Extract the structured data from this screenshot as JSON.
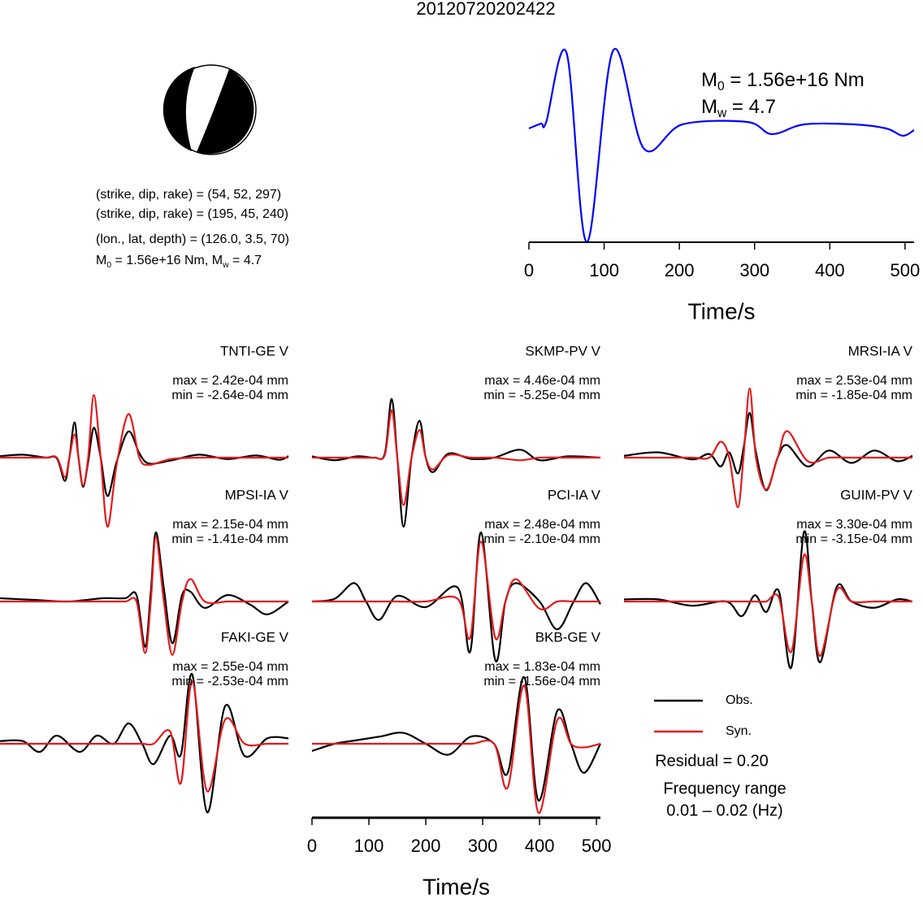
{
  "chart_data": [
    {
      "type": "mechanism",
      "title": "20120720202422",
      "lines": [
        "(strike, dip, rake) = (54, 52, 297)",
        "(strike, dip, rake) = (195, 45, 240)",
        "(lon., lat, depth) = (126.0, 3.5, 70)"
      ],
      "moment_line": [
        "M",
        "0",
        " = 1.56e+16 Nm, M",
        "w",
        " = 4.7"
      ]
    },
    {
      "type": "line",
      "x": [
        0,
        16,
        23,
        50,
        77,
        112,
        153,
        204,
        290,
        323,
        366,
        432,
        475,
        497,
        512
      ],
      "series": [
        {
          "color": "#0000ff",
          "values": [
            0,
            0.06,
            0.08,
            0.93,
            -1.4,
            0.96,
            -0.25,
            0.05,
            0.08,
            -0.07,
            0.05,
            0.05,
            0,
            -0.09,
            -0.02
          ]
        }
      ],
      "xlim": [
        0,
        512
      ],
      "xticks": [
        0,
        100,
        200,
        300,
        400,
        500
      ],
      "xlabel": "Time/s",
      "annotations": [
        [
          "M",
          "0",
          " = 1.56e+16 Nm"
        ],
        [
          "M",
          "w",
          " = 4.7"
        ]
      ]
    },
    {
      "type": "waveform",
      "title": "TNTI-GE V",
      "max_label": "max = 2.42e-04 mm",
      "min_label": "min = -2.64e-04 mm",
      "x": [
        0,
        40,
        80,
        100,
        114,
        122,
        131,
        138,
        146,
        155,
        165,
        177,
        189,
        205,
        226,
        245,
        262,
        300,
        350,
        400,
        450,
        490,
        507
      ],
      "series": [
        {
          "color": "#000000",
          "values": [
            1e-05,
            2e-05,
            0,
            -5e-06,
            -0.00016,
            0,
            0.000242,
            0,
            -0.0002,
            -3e-05,
            0.000205,
            0,
            -0.000264,
            -3e-05,
            0.00018,
            3e-05,
            -4e-05,
            -2e-05,
            2e-05,
            -1e-05,
            1.5e-05,
            -1.5e-05,
            1e-05
          ]
        },
        {
          "color": "#e31a1c",
          "values": [
            0,
            0,
            0,
            0,
            -0.000135,
            0,
            0.00016,
            0,
            -0.00019,
            0,
            0.00043,
            0,
            -0.000475,
            -5e-05,
            0.0003,
            0,
            -5e-05,
            -1e-05,
            0,
            0,
            0,
            0,
            0
          ]
        }
      ]
    },
    {
      "type": "waveform",
      "title": "SKMP-PV V",
      "max_label": "max = 4.46e-04 mm",
      "min_label": "min = -5.25e-04 mm",
      "x": [
        0,
        40,
        80,
        110,
        128,
        140,
        150,
        161,
        175,
        189,
        200,
        213,
        240,
        280,
        320,
        366,
        400,
        450,
        507
      ],
      "series": [
        {
          "color": "#000000",
          "values": [
            1e-05,
            -2e-05,
            1e-05,
            0,
            3e-05,
            0.000446,
            0,
            -0.000525,
            0,
            0.00028,
            0,
            -0.00011,
            3e-05,
            -1e-05,
            0,
            6e-05,
            -2e-05,
            1e-05,
            0
          ]
        },
        {
          "color": "#e31a1c",
          "values": [
            0,
            0,
            0,
            0,
            2e-05,
            0.00036,
            0,
            -0.00036,
            0,
            0.00021,
            0,
            -9e-05,
            2e-05,
            0,
            0,
            -2e-05,
            0,
            0,
            0
          ]
        }
      ]
    },
    {
      "type": "waveform",
      "title": "MRSI-IA V",
      "max_label": "max = 2.53e-04 mm",
      "min_label": "min = -1.85e-04 mm",
      "x": [
        0,
        60,
        120,
        150,
        170,
        185,
        200,
        210,
        221,
        232,
        250,
        270,
        287,
        323,
        360,
        400,
        440,
        480,
        507
      ],
      "series": [
        {
          "color": "#000000",
          "values": [
            1e-05,
            3e-05,
            -1e-05,
            2e-05,
            -5e-05,
            3e-05,
            -9e-05,
            5e-05,
            0.000253,
            3e-05,
            -0.000185,
            0,
            7e-05,
            -5e-05,
            4e-05,
            -3e-05,
            4e-05,
            -2e-05,
            1e-05
          ]
        },
        {
          "color": "#e31a1c",
          "values": [
            0,
            0,
            0,
            0,
            9e-05,
            0,
            -0.00028,
            0,
            0.00039,
            0,
            -0.00018,
            0,
            0.00015,
            -2e-05,
            0,
            0,
            0,
            0,
            0
          ]
        }
      ]
    },
    {
      "type": "waveform",
      "title": "MPSI-IA V",
      "max_label": "max = 2.15e-04 mm",
      "min_label": "min = -1.41e-04 mm",
      "x": [
        0,
        60,
        120,
        180,
        220,
        240,
        255,
        265,
        274,
        288,
        303,
        320,
        335,
        360,
        400,
        440,
        470,
        507
      ],
      "series": [
        {
          "color": "#000000",
          "values": [
            1e-05,
            5e-06,
            0,
            1e-05,
            1e-05,
            2e-05,
            -0.000141,
            3e-05,
            0.000215,
            4e-05,
            -0.00013,
            2e-05,
            3e-05,
            -2e-05,
            2e-05,
            -1e-05,
            -4e-05,
            0
          ]
        },
        {
          "color": "#e31a1c",
          "values": [
            0,
            0,
            0,
            0,
            0,
            0,
            -0.00016,
            0,
            0.0002,
            0,
            -0.000166,
            0,
            7e-05,
            0,
            0,
            0,
            0,
            0
          ]
        }
      ]
    },
    {
      "type": "waveform",
      "title": "PCI-IA V",
      "max_label": "max = 2.48e-04 mm",
      "min_label": "min = -2.10e-04 mm",
      "x": [
        0,
        40,
        74,
        95,
        118,
        150,
        200,
        256,
        278,
        297,
        322,
        340,
        359,
        400,
        431,
        460,
        482,
        507
      ],
      "series": [
        {
          "color": "#000000",
          "values": [
            0,
            1e-05,
            6.6e-05,
            0,
            -6.6e-05,
            2e-05,
            -2e-05,
            5e-05,
            -0.00018,
            0.000248,
            -0.00021,
            0,
            6.6e-05,
            0,
            -0.0001,
            0,
            6.6e-05,
            -1e-05
          ]
        },
        {
          "color": "#e31a1c",
          "values": [
            0,
            0,
            0,
            0,
            0,
            0,
            0,
            1e-05,
            -0.00013,
            0.000215,
            -0.00013,
            0,
            8e-05,
            -2.6e-05,
            0,
            0,
            0,
            0
          ]
        }
      ]
    },
    {
      "type": "waveform",
      "title": "GUIM-PV V",
      "max_label": "max = 3.30e-04 mm",
      "min_label": "min = -3.15e-04 mm",
      "x": [
        0,
        60,
        120,
        180,
        207,
        230,
        250,
        272,
        294,
        316,
        330,
        345,
        374,
        400,
        440,
        480,
        507
      ],
      "series": [
        {
          "color": "#000000",
          "values": [
            1e-05,
            1e-05,
            -2e-05,
            0,
            -7e-05,
            3e-05,
            -5e-05,
            5e-05,
            -0.000315,
            0.00033,
            0,
            -0.00029,
            7e-05,
            0,
            -3e-05,
            1e-05,
            0
          ]
        },
        {
          "color": "#e31a1c",
          "values": [
            0,
            0,
            0,
            0,
            0,
            0,
            0,
            2e-05,
            -0.00024,
            0.00022,
            0,
            -0.00026,
            5.5e-05,
            0,
            0,
            0,
            0
          ]
        }
      ]
    },
    {
      "type": "waveform",
      "title": "FAKI-GE V",
      "max_label": "max = 2.55e-04 mm",
      "min_label": "min = -2.53e-04 mm",
      "x": [
        0,
        40,
        70,
        100,
        140,
        170,
        200,
        226,
        250,
        270,
        299,
        318,
        338,
        364,
        396,
        430,
        470,
        507
      ],
      "series": [
        {
          "color": "#000000",
          "values": [
            1e-05,
            1e-05,
            -3e-05,
            3e-05,
            -3e-05,
            3e-05,
            0,
            7.5e-05,
            0,
            -7.5e-05,
            3e-05,
            -4e-05,
            0.000255,
            -0.000253,
            0.00014,
            -4.5e-05,
            2e-05,
            2e-05
          ]
        },
        {
          "color": "#e31a1c",
          "values": [
            0,
            0,
            0,
            0,
            0,
            0,
            0,
            0,
            0,
            0,
            4.5e-05,
            -0.000145,
            0.00023,
            -0.000175,
            9e-05,
            0,
            0,
            0
          ]
        }
      ]
    },
    {
      "type": "waveform",
      "title": "BKB-GE V",
      "max_label": "max = 1.83e-04 mm",
      "min_label": "min = -1.56e-04 mm",
      "x": [
        0,
        40,
        80,
        120,
        160,
        200,
        240,
        280,
        320,
        344,
        373,
        398,
        431,
        455,
        478,
        507
      ],
      "series": [
        {
          "color": "#000000",
          "values": [
            -2e-05,
            0,
            1e-05,
            2e-05,
            3e-05,
            0,
            -3e-05,
            2e-05,
            0,
            -8e-05,
            0.000183,
            -0.000156,
            9e-05,
            0,
            -8e-05,
            0
          ]
        },
        {
          "color": "#e31a1c",
          "values": [
            0,
            0,
            0,
            0,
            0,
            0,
            0,
            0,
            0,
            -0.00012,
            0.00016,
            -0.00019,
            6.5e-05,
            0,
            -1e-05,
            0
          ]
        }
      ],
      "xlim": [
        0,
        507
      ],
      "xticks": [
        0,
        100,
        200,
        300,
        400,
        500
      ],
      "xlabel": "Time/s"
    },
    {
      "type": "legend",
      "entries": [
        {
          "name": "Obs.",
          "color": "#000000"
        },
        {
          "name": "Syn.",
          "color": "#e31a1c"
        }
      ],
      "residual": "Residual = 0.20",
      "frequency_range": [
        "Frequency range",
        "0.01 – 0.02 (Hz)"
      ]
    }
  ]
}
